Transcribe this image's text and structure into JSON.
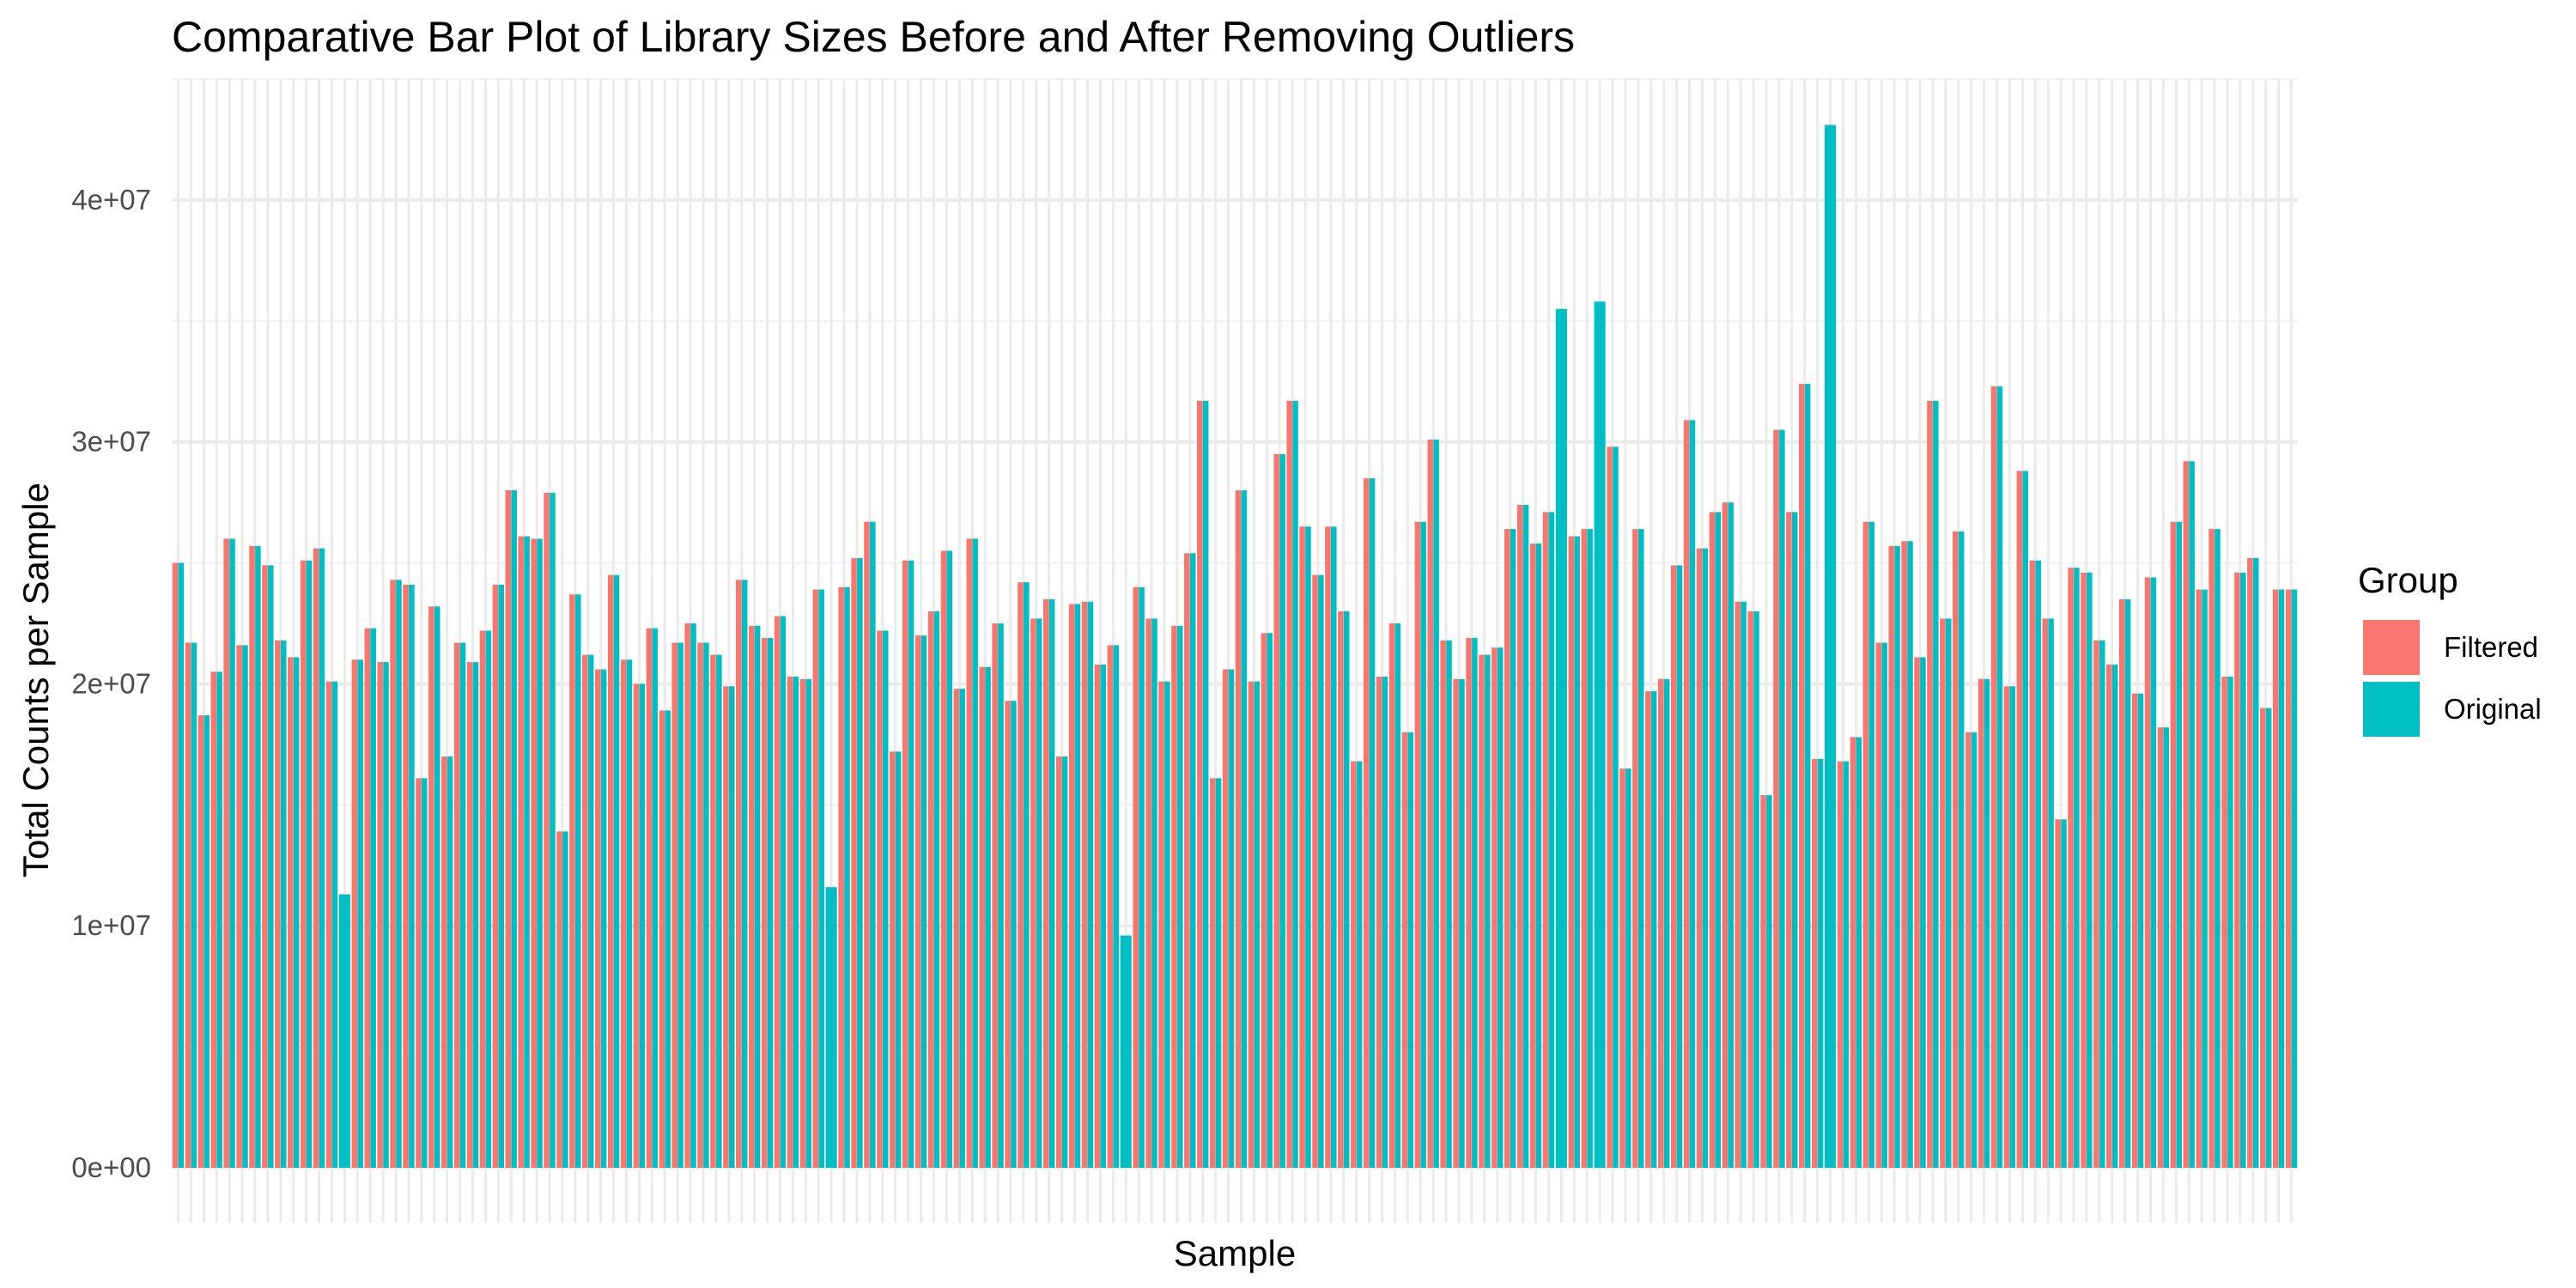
{
  "chart_data": {
    "type": "bar",
    "title": "Comparative Bar Plot of Library Sizes Before and After Removing Outliers",
    "xlabel": "Sample",
    "ylabel": "Total Counts per Sample",
    "ylim": [
      0,
      45000000
    ],
    "yticks": [
      0,
      10000000,
      20000000,
      30000000,
      40000000
    ],
    "ytick_labels": [
      "0e+00",
      "1e+07",
      "2e+07",
      "3e+07",
      "4e+07"
    ],
    "grid": true,
    "legend": {
      "title": "Group",
      "position": "right"
    },
    "series": [
      {
        "name": "Filtered",
        "color": "#F8766D",
        "values": [
          25000000,
          21700000,
          18700000,
          20500000,
          26000000,
          21600000,
          25700000,
          24900000,
          21800000,
          21100000,
          25100000,
          25600000,
          20100000,
          null,
          21000000,
          22300000,
          20900000,
          24300000,
          24100000,
          16100000,
          23200000,
          17000000,
          21700000,
          20900000,
          22200000,
          24100000,
          28000000,
          26100000,
          26000000,
          27900000,
          13900000,
          23700000,
          21200000,
          20600000,
          24500000,
          21000000,
          20000000,
          22300000,
          18900000,
          21700000,
          22500000,
          21700000,
          21200000,
          19900000,
          24300000,
          22400000,
          21900000,
          22800000,
          20300000,
          20200000,
          23900000,
          null,
          24000000,
          25200000,
          26700000,
          22200000,
          17200000,
          25100000,
          22000000,
          23000000,
          25500000,
          19800000,
          26000000,
          20700000,
          22500000,
          19300000,
          24200000,
          22700000,
          23500000,
          17000000,
          23300000,
          23400000,
          20800000,
          21600000,
          null,
          24000000,
          22700000,
          20100000,
          22400000,
          25400000,
          31700000,
          16100000,
          20600000,
          28000000,
          20100000,
          22100000,
          29500000,
          31700000,
          26500000,
          24500000,
          26500000,
          23000000,
          16800000,
          28500000,
          20300000,
          22500000,
          18000000,
          26700000,
          30100000,
          21800000,
          20200000,
          21900000,
          21200000,
          21500000,
          26400000,
          27400000,
          25800000,
          27100000,
          null,
          26100000,
          26400000,
          null,
          29800000,
          16500000,
          26400000,
          19700000,
          20200000,
          24900000,
          30900000,
          25600000,
          27100000,
          27500000,
          23400000,
          23000000,
          15400000,
          30500000,
          27100000,
          32400000,
          16900000,
          null,
          16800000,
          17800000,
          26700000,
          21700000,
          25700000,
          25900000,
          21100000,
          31700000,
          22700000,
          26300000,
          18000000,
          20200000,
          32300000,
          19900000,
          28800000,
          25100000,
          22700000,
          14400000,
          24800000,
          24600000,
          21800000,
          20800000,
          23500000,
          19600000,
          24400000,
          18200000,
          26700000,
          29200000,
          23900000,
          26400000,
          20300000,
          24600000,
          25200000,
          19000000,
          23900000,
          23900000
        ]
      },
      {
        "name": "Original",
        "color": "#00BFC4",
        "values": [
          25000000,
          21700000,
          18700000,
          20500000,
          26000000,
          21600000,
          25700000,
          24900000,
          21800000,
          21100000,
          25100000,
          25600000,
          20100000,
          11300000,
          21000000,
          22300000,
          20900000,
          24300000,
          24100000,
          16100000,
          23200000,
          17000000,
          21700000,
          20900000,
          22200000,
          24100000,
          28000000,
          26100000,
          26000000,
          27900000,
          13900000,
          23700000,
          21200000,
          20600000,
          24500000,
          21000000,
          20000000,
          22300000,
          18900000,
          21700000,
          22500000,
          21700000,
          21200000,
          19900000,
          24300000,
          22400000,
          21900000,
          22800000,
          20300000,
          20200000,
          23900000,
          11600000,
          24000000,
          25200000,
          26700000,
          22200000,
          17200000,
          25100000,
          22000000,
          23000000,
          25500000,
          19800000,
          26000000,
          20700000,
          22500000,
          19300000,
          24200000,
          22700000,
          23500000,
          17000000,
          23300000,
          23400000,
          20800000,
          21600000,
          9600000,
          24000000,
          22700000,
          20100000,
          22400000,
          25400000,
          31700000,
          16100000,
          20600000,
          28000000,
          20100000,
          22100000,
          29500000,
          31700000,
          26500000,
          24500000,
          26500000,
          23000000,
          16800000,
          28500000,
          20300000,
          22500000,
          18000000,
          26700000,
          30100000,
          21800000,
          20200000,
          21900000,
          21200000,
          21500000,
          26400000,
          27400000,
          25800000,
          27100000,
          35500000,
          26100000,
          26400000,
          35800000,
          29800000,
          16500000,
          26400000,
          19700000,
          20200000,
          24900000,
          30900000,
          25600000,
          27100000,
          27500000,
          23400000,
          23000000,
          15400000,
          30500000,
          27100000,
          32400000,
          16900000,
          43100000,
          16800000,
          17800000,
          26700000,
          21700000,
          25700000,
          25900000,
          21100000,
          31700000,
          22700000,
          26300000,
          18000000,
          20200000,
          32300000,
          19900000,
          28800000,
          25100000,
          22700000,
          14400000,
          24800000,
          24600000,
          21800000,
          20800000,
          23500000,
          19600000,
          24400000,
          18200000,
          26700000,
          29200000,
          23900000,
          26400000,
          20300000,
          24600000,
          25200000,
          19000000,
          23900000,
          23900000
        ]
      }
    ]
  }
}
